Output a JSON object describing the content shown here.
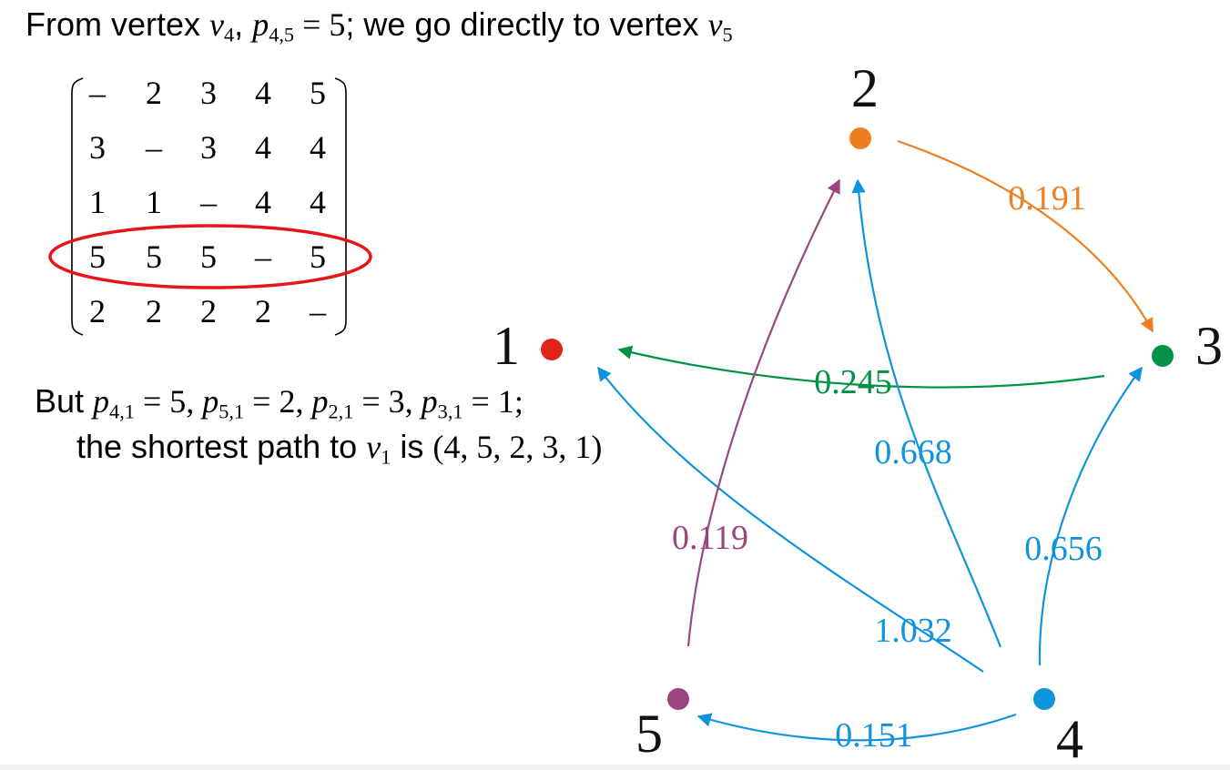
{
  "header": {
    "prefix": "From vertex ",
    "v": "v",
    "v_sub": "4",
    "comma": ", ",
    "p": "p",
    "p_sub": "4,5",
    "eq": " = 5",
    "suffix": "; we go directly to vertex ",
    "v2": "v",
    "v2_sub": "5"
  },
  "matrix": {
    "rows": [
      [
        "–",
        "2",
        "3",
        "4",
        "5"
      ],
      [
        "3",
        "–",
        "3",
        "4",
        "4"
      ],
      [
        "1",
        "1",
        "–",
        "4",
        "4"
      ],
      [
        "5",
        "5",
        "5",
        "–",
        "5"
      ],
      [
        "2",
        "2",
        "2",
        "2",
        "–"
      ]
    ],
    "highlighted_row": 3,
    "highlight_color": "#e8141b"
  },
  "explanation": {
    "line1_prefix": "But ",
    "terms": [
      {
        "p": "p",
        "sub": "4,1",
        "eq": " = 5"
      },
      {
        "p": "p",
        "sub": "5,1",
        "eq": " = 2"
      },
      {
        "p": "p",
        "sub": "2,1",
        "eq": " = 3"
      },
      {
        "p": "p",
        "sub": "3,1",
        "eq": " = 1"
      }
    ],
    "sep": ", ",
    "end": ";",
    "line2_prefix": "the shortest path to ",
    "line2_v": "v",
    "line2_v_sub": "1",
    "line2_is": " is ",
    "line2_path": "(4, 5, 2, 3, 1)"
  },
  "graph": {
    "nodes": [
      {
        "label": "1",
        "color": "#e2231a"
      },
      {
        "label": "2",
        "color": "#ee7f1e"
      },
      {
        "label": "3",
        "color": "#009245"
      },
      {
        "label": "4",
        "color": "#0f93dd"
      },
      {
        "label": "5",
        "color": "#9b4680"
      }
    ],
    "edges": [
      {
        "from": "2",
        "to": "3",
        "weight": "0.191",
        "color": "#ee7f1e"
      },
      {
        "from": "3",
        "to": "1",
        "weight": "0.245",
        "color": "#009245"
      },
      {
        "from": "4",
        "to": "2",
        "weight": "0.668",
        "color": "#0f93dd"
      },
      {
        "from": "4",
        "to": "3",
        "weight": "0.656",
        "color": "#0f93dd"
      },
      {
        "from": "4",
        "to": "1",
        "weight": "1.032",
        "color": "#0f93dd"
      },
      {
        "from": "4",
        "to": "5",
        "weight": "0.151",
        "color": "#0f93dd"
      },
      {
        "from": "5",
        "to": "2",
        "weight": "0.119",
        "color": "#9b4680"
      }
    ]
  }
}
